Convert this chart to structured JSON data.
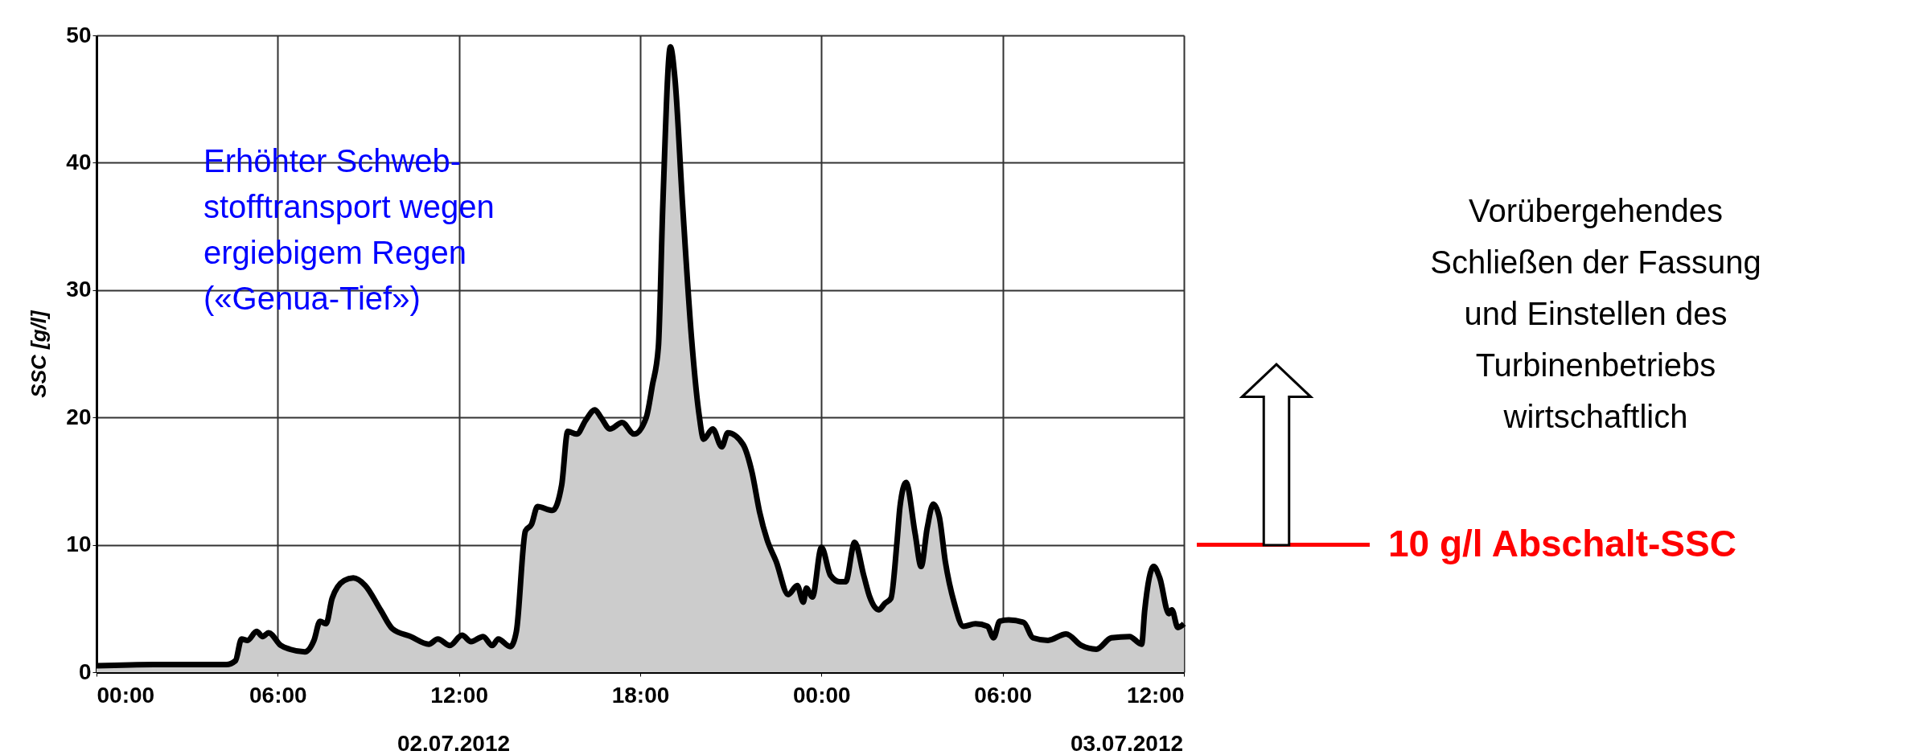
{
  "chart_data": {
    "type": "area",
    "ylabel": "SSC [g/l]",
    "x": [
      "2012-07-02T00:00",
      "2012-07-02T01:54",
      "2012-07-02T04:18",
      "2012-07-02T04:36",
      "2012-07-02T04:48",
      "2012-07-02T05:00",
      "2012-07-02T05:18",
      "2012-07-02T05:30",
      "2012-07-02T05:42",
      "2012-07-02T06:06",
      "2012-07-02T06:24",
      "2012-07-02T06:54",
      "2012-07-02T07:12",
      "2012-07-02T07:24",
      "2012-07-02T07:36",
      "2012-07-02T07:48",
      "2012-07-02T08:12",
      "2012-07-02T08:30",
      "2012-07-02T08:54",
      "2012-07-02T09:24",
      "2012-07-02T09:48",
      "2012-07-02T10:24",
      "2012-07-02T11:00",
      "2012-07-02T11:18",
      "2012-07-02T11:42",
      "2012-07-02T12:06",
      "2012-07-02T12:24",
      "2012-07-02T12:48",
      "2012-07-02T13:06",
      "2012-07-02T13:18",
      "2012-07-02T13:42",
      "2012-07-02T13:54",
      "2012-07-02T14:12",
      "2012-07-02T14:24",
      "2012-07-02T14:36",
      "2012-07-02T15:06",
      "2012-07-02T15:24",
      "2012-07-02T15:36",
      "2012-07-02T15:54",
      "2012-07-02T16:12",
      "2012-07-02T16:30",
      "2012-07-02T16:42",
      "2012-07-02T17:00",
      "2012-07-02T17:24",
      "2012-07-02T17:48",
      "2012-07-02T18:12",
      "2012-07-02T18:24",
      "2012-07-02T18:36",
      "2012-07-02T18:45",
      "2012-07-02T19:00",
      "2012-07-02T19:09",
      "2012-07-02T19:24",
      "2012-07-02T19:42",
      "2012-07-02T19:57",
      "2012-07-02T20:06",
      "2012-07-02T20:24",
      "2012-07-02T20:42",
      "2012-07-02T20:54",
      "2012-07-02T21:24",
      "2012-07-02T21:42",
      "2012-07-02T21:57",
      "2012-07-02T22:12",
      "2012-07-02T22:30",
      "2012-07-02T22:54",
      "2012-07-02T23:12",
      "2012-07-02T23:24",
      "2012-07-02T23:30",
      "2012-07-02T23:42",
      "2012-07-03T00:00",
      "2012-07-03T00:18",
      "2012-07-03T00:36",
      "2012-07-03T00:48",
      "2012-07-03T01:06",
      "2012-07-03T01:24",
      "2012-07-03T01:36",
      "2012-07-03T01:54",
      "2012-07-03T02:06",
      "2012-07-03T02:18",
      "2012-07-03T02:30",
      "2012-07-03T02:36",
      "2012-07-03T02:48",
      "2012-07-03T03:06",
      "2012-07-03T03:18",
      "2012-07-03T03:30",
      "2012-07-03T03:42",
      "2012-07-03T03:54",
      "2012-07-03T04:06",
      "2012-07-03T04:24",
      "2012-07-03T04:42",
      "2012-07-03T05:06",
      "2012-07-03T05:30",
      "2012-07-03T05:42",
      "2012-07-03T05:54",
      "2012-07-03T06:12",
      "2012-07-03T06:42",
      "2012-07-03T07:00",
      "2012-07-03T07:30",
      "2012-07-03T08:06",
      "2012-07-03T08:36",
      "2012-07-03T09:06",
      "2012-07-03T09:36",
      "2012-07-03T10:12",
      "2012-07-03T10:36",
      "2012-07-03T10:42",
      "2012-07-03T11:00",
      "2012-07-03T11:12",
      "2012-07-03T11:30",
      "2012-07-03T11:36",
      "2012-07-03T11:48",
      "2012-07-03T12:00"
    ],
    "series": [
      {
        "color": "#cccccc",
        "values": [
          0.5,
          0.6,
          0.6,
          0.9,
          2.6,
          2.5,
          3.2,
          2.8,
          3.1,
          2.1,
          1.8,
          1.6,
          2.5,
          4.0,
          3.8,
          5.8,
          7.2,
          7.4,
          6.8,
          4.9,
          3.4,
          2.8,
          2.2,
          2.6,
          2.1,
          2.9,
          2.4,
          2.8,
          2.1,
          2.6,
          2.0,
          3.2,
          11.1,
          11.6,
          13.0,
          12.7,
          14.7,
          18.9,
          18.7,
          19.8,
          20.6,
          20.0,
          19.1,
          19.6,
          18.7,
          20.0,
          22.5,
          25.5,
          36.8,
          49.1,
          46.6,
          36.8,
          26.2,
          20.2,
          18.3,
          19.1,
          17.7,
          18.8,
          17.9,
          15.7,
          12.6,
          10.4,
          8.7,
          6.1,
          6.8,
          5.5,
          6.6,
          5.9,
          9.8,
          7.6,
          7.1,
          7.1,
          10.2,
          7.6,
          5.9,
          4.9,
          5.4,
          5.8,
          10.2,
          13.0,
          14.9,
          10.9,
          8.3,
          11.3,
          13.2,
          12.2,
          8.7,
          5.4,
          3.6,
          3.8,
          3.6,
          2.7,
          4.0,
          4.1,
          3.9,
          2.7,
          2.5,
          3.0,
          2.1,
          1.8,
          2.7,
          2.8,
          2.2,
          4.8,
          8.3,
          7.4,
          4.6,
          4.9,
          3.5,
          3.8
        ]
      }
    ],
    "xlim": [
      "2012-07-02T00:00",
      "2012-07-03T12:00"
    ],
    "xticks": [
      {
        "value": "2012-07-02T00:00",
        "label": "00:00"
      },
      {
        "value": "2012-07-02T06:00",
        "label": "06:00"
      },
      {
        "value": "2012-07-02T12:00",
        "label": "12:00"
      },
      {
        "value": "2012-07-02T18:00",
        "label": "18:00"
      },
      {
        "value": "2012-07-03T00:00",
        "label": "00:00"
      },
      {
        "value": "2012-07-03T06:00",
        "label": "06:00"
      },
      {
        "value": "2012-07-03T12:00",
        "label": "12:00"
      }
    ],
    "ylim": [
      0,
      50
    ],
    "yticks": [
      0,
      10,
      20,
      30,
      40,
      50
    ],
    "grid": true,
    "ref_lines": [
      {
        "axis": "y",
        "value": 10,
        "label": "10 g/l  Abschalt-SSC",
        "color": "#ff0000"
      }
    ],
    "annotations": [
      "Erhöhter Schweb-\nstofftransport wegen\nergiebigem Regen\n(«Genua-Tief»)",
      "Vorübergehendes\nSchließen der Fassung\nund Einstellen des\nTurbinenbetriebs\nwirtschaftlich",
      "02.07.2012",
      "03.07.2012"
    ]
  }
}
